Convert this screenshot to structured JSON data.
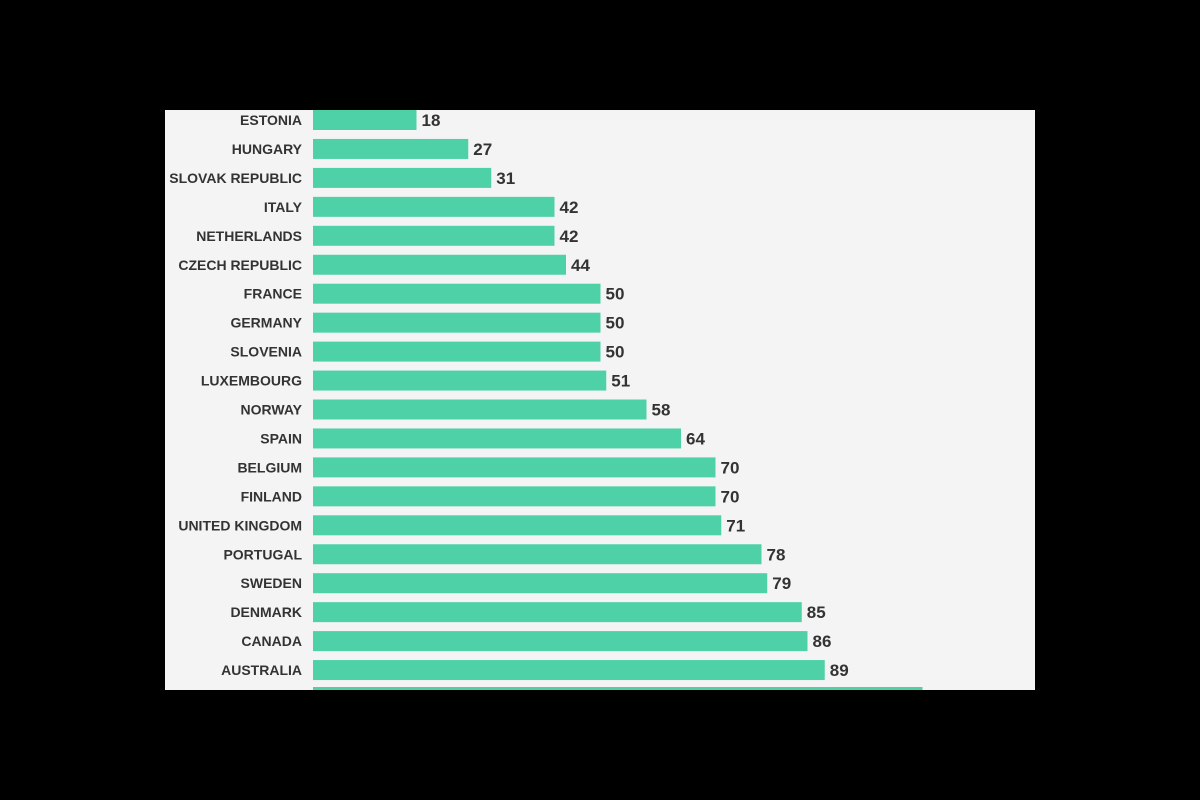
{
  "colors": {
    "background": "#000000",
    "panel": "#f4f4f4",
    "bar": "#4fd1a8",
    "text": "#333333"
  },
  "chart_data": {
    "type": "bar",
    "orientation": "horizontal",
    "categories": [
      "ESTONIA",
      "HUNGARY",
      "SLOVAK REPUBLIC",
      "ITALY",
      "NETHERLANDS",
      "CZECH REPUBLIC",
      "FRANCE",
      "GERMANY",
      "SLOVENIA",
      "LUXEMBOURG",
      "NORWAY",
      "SPAIN",
      "BELGIUM",
      "FINLAND",
      "UNITED KINGDOM",
      "PORTUGAL",
      "SWEDEN",
      "DENMARK",
      "CANADA",
      "AUSTRALIA"
    ],
    "values": [
      18,
      27,
      31,
      42,
      42,
      44,
      50,
      50,
      50,
      51,
      58,
      64,
      70,
      70,
      71,
      78,
      79,
      85,
      86,
      89
    ],
    "partial_bar_value": 106,
    "title": "",
    "xlabel": "",
    "ylabel": "",
    "grid": false,
    "legend": "none"
  }
}
